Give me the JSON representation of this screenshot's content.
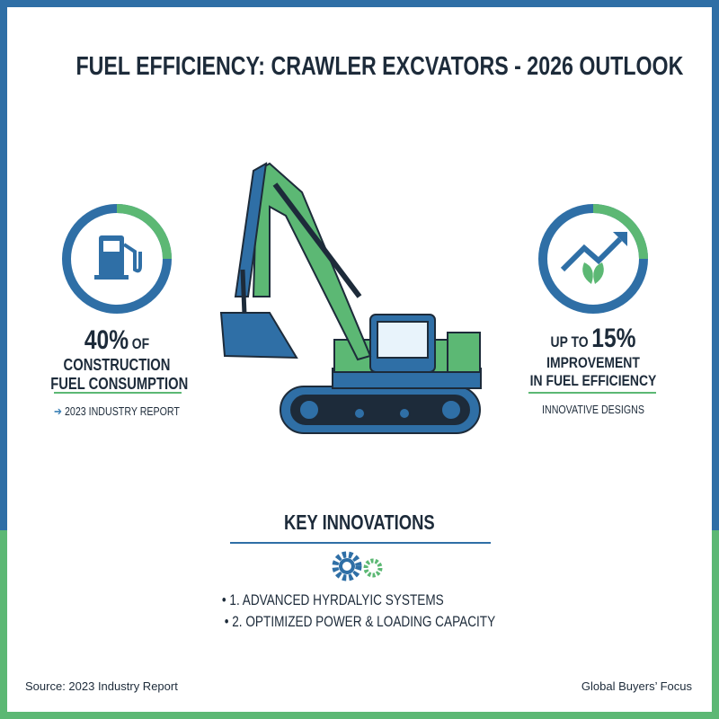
{
  "header": {
    "title": "FUEL EFFICIENCY: CRAWLER EXCVATORS - 2026 OUTLOOK"
  },
  "left_stat": {
    "figure": "40%",
    "figure_suffix": "OF",
    "line1": "CONSTRUCTION",
    "line2": "FUEL CONSUMPTION",
    "source": "2023 INDUSTRY REPORT"
  },
  "right_stat": {
    "prefix": "UP TO",
    "figure": "15%",
    "line1": "IMPROVEMENT",
    "line2": "IN FUEL EFFICIENCY",
    "note": "INNOVATIVE DESIGNS"
  },
  "innovations": {
    "heading": "KEY INNOVATIONS",
    "items": [
      "1. ADVANCED HYRDALYIC SYSTEMS",
      "2. OPTIMIZED POWER & LOADING CAPACITY"
    ]
  },
  "footer": {
    "source": "Source: 2023 Industry Report",
    "brand": "Global Buyers’ Focus"
  }
}
